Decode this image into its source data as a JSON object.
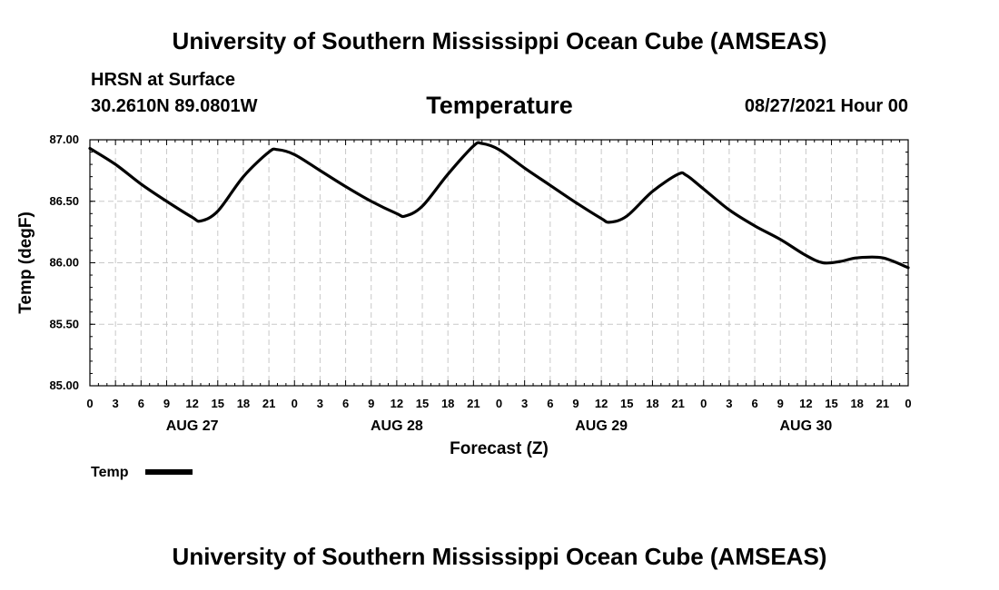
{
  "header": {
    "title": "University of Southern Mississippi Ocean Cube (AMSEAS)",
    "station": "HRSN at Surface",
    "coords": "30.2610N  89.0801W",
    "chart_title": "Temperature",
    "datetime": "08/27/2021 Hour 00"
  },
  "footer": {
    "title": "University of Southern Mississippi Ocean Cube (AMSEAS)"
  },
  "chart_data": {
    "type": "line",
    "title": "Temperature",
    "xlabel": "Forecast (Z)",
    "ylabel": "Temp (degF)",
    "xlim": [
      0,
      96
    ],
    "ylim": [
      85.0,
      87.0
    ],
    "y_ticks": [
      85.0,
      85.5,
      86.0,
      86.5,
      87.0
    ],
    "y_tick_labels": [
      "85.00",
      "85.50",
      "86.00",
      "86.50",
      "87.00"
    ],
    "x_ticks": [
      0,
      3,
      6,
      9,
      12,
      15,
      18,
      21,
      24,
      27,
      30,
      33,
      36,
      39,
      42,
      45,
      48,
      51,
      54,
      57,
      60,
      63,
      66,
      69,
      72,
      75,
      78,
      81,
      84,
      87,
      90,
      93,
      96
    ],
    "x_tick_labels": [
      "0",
      "3",
      "6",
      "9",
      "12",
      "15",
      "18",
      "21",
      "0",
      "3",
      "6",
      "9",
      "12",
      "15",
      "18",
      "21",
      "0",
      "3",
      "6",
      "9",
      "12",
      "15",
      "18",
      "21",
      "0",
      "3",
      "6",
      "9",
      "12",
      "15",
      "18",
      "21",
      "0"
    ],
    "day_labels": [
      {
        "label": "AUG 27",
        "hour": 12
      },
      {
        "label": "AUG 28",
        "hour": 36
      },
      {
        "label": "AUG 29",
        "hour": 60
      },
      {
        "label": "AUG 30",
        "hour": 84
      }
    ],
    "grid": true,
    "legend": "bottom-left",
    "series": [
      {
        "name": "Temp",
        "x": [
          0,
          3,
          6,
          9,
          12,
          13,
          15,
          18,
          21,
          22,
          24,
          27,
          30,
          33,
          36,
          37,
          39,
          42,
          45,
          46,
          48,
          51,
          54,
          57,
          60,
          61,
          63,
          66,
          69,
          70,
          72,
          75,
          78,
          81,
          84,
          86,
          88,
          90,
          93,
          96
        ],
        "values": [
          86.93,
          86.8,
          86.64,
          86.5,
          86.37,
          86.34,
          86.42,
          86.7,
          86.9,
          86.92,
          86.88,
          86.75,
          86.62,
          86.5,
          86.4,
          86.38,
          86.46,
          86.72,
          86.95,
          86.97,
          86.92,
          86.77,
          86.63,
          86.49,
          86.36,
          86.33,
          86.38,
          86.58,
          86.72,
          86.71,
          86.6,
          86.43,
          86.3,
          86.19,
          86.06,
          86.0,
          86.01,
          86.04,
          86.04,
          85.96
        ]
      }
    ]
  }
}
